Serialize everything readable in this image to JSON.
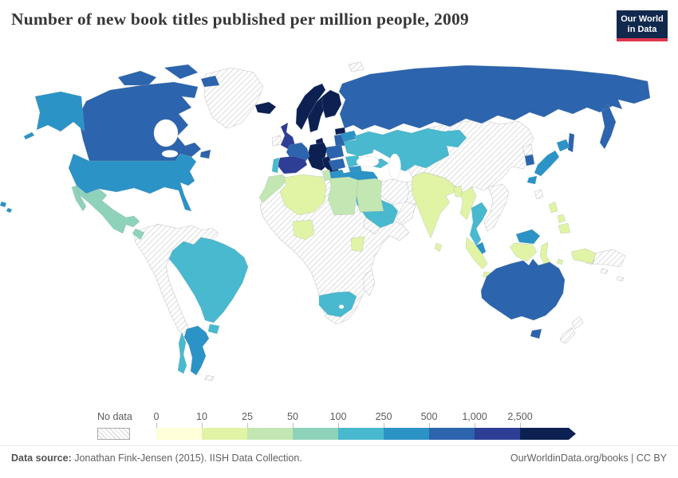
{
  "header": {
    "title": "Number of new book titles published per million people, 2009",
    "logo": {
      "line1": "Our World",
      "line2": "in Data",
      "bg_color": "#12294e",
      "accent_color": "#e0374f"
    }
  },
  "legend": {
    "no_data_label": "No data",
    "ticks": [
      "0",
      "10",
      "25",
      "50",
      "100",
      "250",
      "500",
      "1,000",
      "2,500"
    ],
    "colors": [
      "#ffffd9",
      "#e1f3a5",
      "#c3e7b2",
      "#8ed2ba",
      "#48b9ce",
      "#2b93c6",
      "#2c64ad",
      "#2e3e95",
      "#0c2052"
    ]
  },
  "footer": {
    "source_label": "Data source:",
    "source_text": "Jonathan Fink-Jensen (2015). IISH Data Collection.",
    "credit": "OurWorldinData.org/books | CC BY"
  },
  "chart_data": {
    "type": "choropleth_map",
    "title": "Number of new book titles published per million people, 2009",
    "unit": "new book titles per million people",
    "year": 2009,
    "no_data_style": "diagonal gray hatching",
    "bins": [
      {
        "range": "0-10",
        "color": "#ffffd9",
        "countries": []
      },
      {
        "range": "10-25",
        "color": "#e1f3a5",
        "countries": [
          "Algeria",
          "Nigeria",
          "Kenya",
          "India",
          "Sri Lanka",
          "Bangladesh",
          "Myanmar",
          "Indonesia",
          "Philippines"
        ]
      },
      {
        "range": "25-50",
        "color": "#c3e7b2",
        "countries": [
          "Morocco",
          "Tunisia",
          "Libya",
          "Egypt"
        ]
      },
      {
        "range": "50-100",
        "color": "#8ed2ba",
        "countries": [
          "Mexico",
          "Guatemala"
        ]
      },
      {
        "range": "100-250",
        "color": "#48b9ce",
        "countries": [
          "Brazil",
          "Chile",
          "Uruguay",
          "Portugal",
          "Ukraine",
          "Romania",
          "Kazakhstan",
          "Uzbekistan",
          "Turkmenistan",
          "Kyrgyzstan",
          "Georgia",
          "Armenia",
          "Azerbaijan",
          "Saudi Arabia",
          "Oman",
          "United Arab Emirates",
          "Israel",
          "South Africa",
          "Thailand"
        ]
      },
      {
        "range": "250-500",
        "color": "#2b93c6",
        "countries": [
          "United States",
          "Argentina",
          "Belarus",
          "Serbia",
          "Bulgaria",
          "Turkey",
          "Japan",
          "Malaysia"
        ]
      },
      {
        "range": "500-1,000",
        "color": "#2c64ad",
        "countries": [
          "Canada",
          "Russia",
          "Poland",
          "Czechia",
          "Slovakia",
          "Hungary",
          "Latvia",
          "Lithuania",
          "Greece",
          "France",
          "South Korea",
          "Australia"
        ]
      },
      {
        "range": "1,000-2,500",
        "color": "#2e3e95",
        "countries": [
          "United Kingdom",
          "Spain"
        ]
      },
      {
        "range": ">2,500",
        "color": "#0c2052",
        "countries": [
          "Iceland",
          "Norway",
          "Sweden",
          "Finland",
          "Denmark",
          "Estonia",
          "Germany",
          "Netherlands",
          "Belgium",
          "Switzerland",
          "Austria",
          "Italy"
        ]
      }
    ],
    "no_data_countries": [
      "Greenland",
      "Ireland",
      "China",
      "Mongolia",
      "Iran",
      "Pakistan",
      "Afghanistan",
      "Vietnam",
      "Laos",
      "Cambodia",
      "North Korea",
      "Taiwan",
      "Papua New Guinea",
      "New Zealand",
      "Colombia",
      "Venezuela",
      "Peru",
      "Ecuador",
      "Bolivia",
      "Paraguay",
      "Central America (most)",
      "Caribbean islands",
      "Iraq",
      "Syria",
      "Yemen",
      "Madagascar",
      "most of Sub-Saharan Africa"
    ]
  }
}
